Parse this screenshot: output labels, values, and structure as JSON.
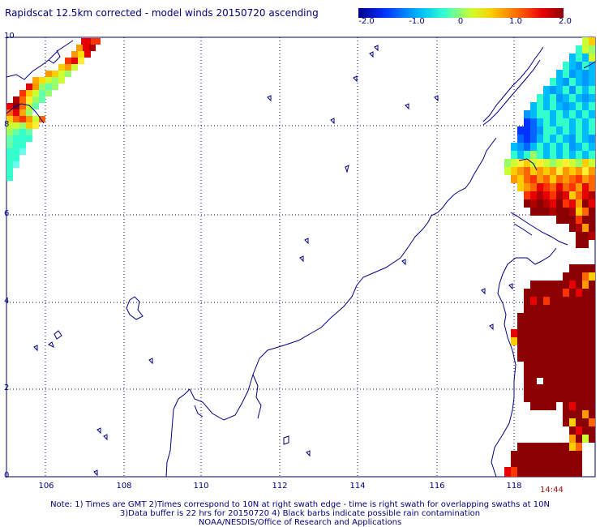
{
  "title": "Rapidscat 12.5km corrected - model winds 20150720 ascending",
  "colorbar": {
    "ticks": [
      "-2.0",
      "-1.0",
      "0",
      "1.0",
      "2.0"
    ],
    "colors": [
      "#00008b",
      "#0033ff",
      "#00bbff",
      "#33ffcc",
      "#ccff33",
      "#ffcc00",
      "#ff6600",
      "#e60000",
      "#8b0000"
    ]
  },
  "axes": {
    "lat_labels": [
      "10",
      "8",
      "6",
      "4",
      "2",
      "0"
    ],
    "lon_labels": [
      "106",
      "108",
      "110",
      "112",
      "114",
      "116",
      "118"
    ]
  },
  "swath_time": "14:44",
  "notes": {
    "line1": "Note: 1) Times are GMT 2)Times correspond to 10N at right swath edge - time is right swath for overlapping swaths at 10N",
    "line2": "3)Data buffer is 22 hrs for 20150720 4) Black barbs indicate possible rain contamination",
    "line3": "NOAA/NESDIS/Office of Research and Applications"
  },
  "colors": {
    "text": "#00007a",
    "coastline": "#000080",
    "grid": "#000066",
    "time": "#a01010"
  }
}
